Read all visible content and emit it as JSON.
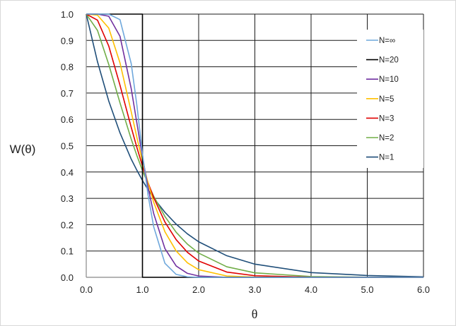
{
  "chart_data": {
    "type": "line",
    "title": "",
    "xlabel": "θ",
    "ylabel": "W(θ)",
    "xlim": [
      0,
      6
    ],
    "ylim": [
      0,
      1
    ],
    "x_ticks": [
      "0.0",
      "1.0",
      "2.0",
      "3.0",
      "4.0",
      "5.0",
      "6.0"
    ],
    "y_ticks": [
      "0.0",
      "0.1",
      "0.2",
      "0.3",
      "0.4",
      "0.5",
      "0.6",
      "0.7",
      "0.8",
      "0.9",
      "1.0"
    ],
    "grid": true,
    "legend_position": "right",
    "x": [
      0,
      0.2,
      0.4,
      0.6,
      0.8,
      0.9,
      1.0,
      1.1,
      1.2,
      1.4,
      1.6,
      1.8,
      2.0,
      2.5,
      3,
      4,
      5,
      6
    ],
    "series": [
      {
        "name": "N=∞",
        "color": "#6fa8dc",
        "values": [
          1,
          1,
          1,
          0.979,
          0.812,
          0.655,
          0.47,
          0.312,
          0.192,
          0.053,
          0.011,
          0.002,
          0,
          0,
          0,
          0,
          0,
          0
        ]
      },
      {
        "name": "N=20",
        "color": "#000000",
        "x": [
          0,
          1,
          1,
          6
        ],
        "values": [
          1,
          1,
          0,
          0
        ]
      },
      {
        "name": "N=10",
        "color": "#7030a0",
        "values": [
          1,
          1,
          0.992,
          0.916,
          0.717,
          0.587,
          0.458,
          0.341,
          0.242,
          0.109,
          0.043,
          0.015,
          0.005,
          0,
          0,
          0,
          0,
          0
        ]
      },
      {
        "name": "N=5",
        "color": "#ffc000",
        "values": [
          1,
          0.996,
          0.947,
          0.815,
          0.629,
          0.532,
          0.44,
          0.358,
          0.285,
          0.173,
          0.1,
          0.055,
          0.029,
          0.005,
          0.001,
          0,
          0,
          0
        ]
      },
      {
        "name": "N=3",
        "color": "#e00000",
        "values": [
          1,
          0.977,
          0.879,
          0.73,
          0.57,
          0.494,
          0.423,
          0.359,
          0.303,
          0.21,
          0.143,
          0.095,
          0.062,
          0.02,
          0.006,
          0.0005,
          0,
          0
        ]
      },
      {
        "name": "N=2",
        "color": "#70ad47",
        "values": [
          1,
          0.938,
          0.809,
          0.663,
          0.525,
          0.463,
          0.406,
          0.355,
          0.308,
          0.231,
          0.171,
          0.126,
          0.092,
          0.04,
          0.017,
          0.003,
          0.0005,
          0.0001
        ]
      },
      {
        "name": "N=1",
        "color": "#1f4e79",
        "values": [
          1,
          0.819,
          0.67,
          0.549,
          0.449,
          0.407,
          0.368,
          0.333,
          0.301,
          0.247,
          0.202,
          0.165,
          0.135,
          0.082,
          0.05,
          0.018,
          0.007,
          0.002
        ]
      }
    ]
  }
}
